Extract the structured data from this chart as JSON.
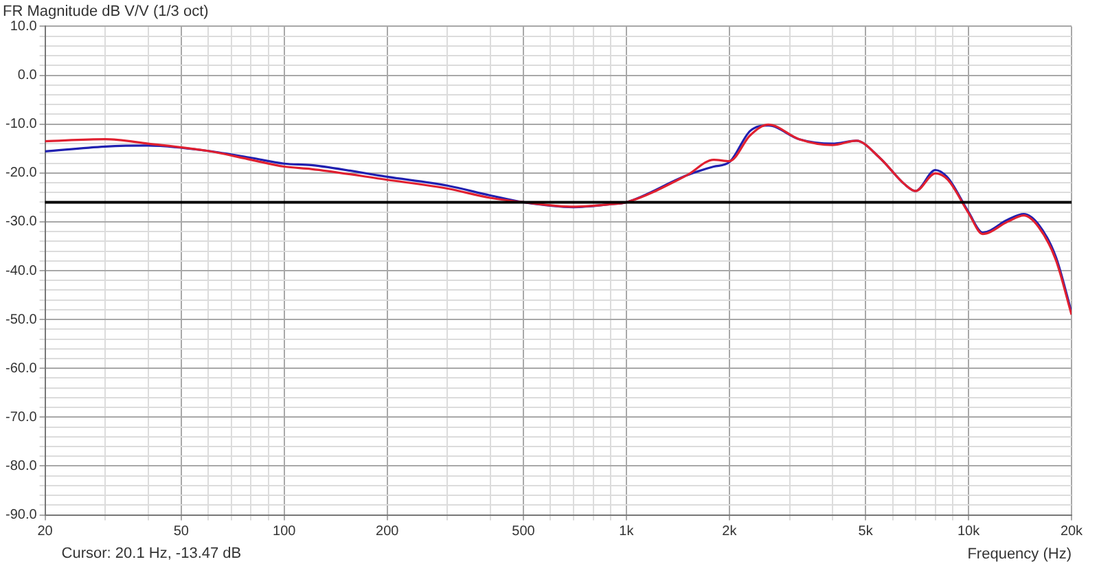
{
  "chart_data": {
    "type": "line",
    "title": "FR Magnitude dB V/V (1/3 oct)",
    "xlabel": "Frequency (Hz)",
    "log": "x",
    "grid": true,
    "legend": false,
    "marker": "none",
    "line_style": "solid",
    "xlim": [
      20,
      20000
    ],
    "xticks": [
      20,
      {
        "value": 30,
        "label": null
      },
      {
        "value": 40,
        "label": null
      },
      50,
      {
        "value": 60,
        "label": null
      },
      {
        "value": 70,
        "label": null
      },
      {
        "value": 80,
        "label": null
      },
      {
        "value": 90,
        "label": null
      },
      100,
      200,
      {
        "value": 300,
        "label": null
      },
      {
        "value": 400,
        "label": null
      },
      500,
      {
        "value": 600,
        "label": null
      },
      {
        "value": 700,
        "label": null
      },
      {
        "value": 800,
        "label": null
      },
      {
        "value": 900,
        "label": null
      },
      {
        "value": 1000,
        "label": "1k"
      },
      {
        "value": 2000,
        "label": "2k"
      },
      {
        "value": 3000,
        "label": null
      },
      {
        "value": 4000,
        "label": null
      },
      {
        "value": 5000,
        "label": "5k"
      },
      {
        "value": 6000,
        "label": null
      },
      {
        "value": 7000,
        "label": null
      },
      {
        "value": 8000,
        "label": null
      },
      {
        "value": 9000,
        "label": null
      },
      {
        "value": 10000,
        "label": "10k"
      },
      {
        "value": 20000,
        "label": "20k"
      }
    ],
    "ylim": [
      -90,
      10
    ],
    "yticks": [
      {
        "value": 10,
        "label": "10.0"
      },
      {
        "value": 8,
        "label": null
      },
      {
        "value": 6,
        "label": null
      },
      {
        "value": 4,
        "label": null
      },
      {
        "value": 2,
        "label": null
      },
      {
        "value": 0,
        "label": "0.0"
      },
      {
        "value": -2,
        "label": null
      },
      {
        "value": -4,
        "label": null
      },
      {
        "value": -6,
        "label": null
      },
      {
        "value": -8,
        "label": null
      },
      {
        "value": -10,
        "label": "-10.0"
      },
      {
        "value": -12,
        "label": null
      },
      {
        "value": -14,
        "label": null
      },
      {
        "value": -16,
        "label": null
      },
      {
        "value": -18,
        "label": null
      },
      {
        "value": -20,
        "label": "-20.0"
      },
      {
        "value": -22,
        "label": null
      },
      {
        "value": -24,
        "label": null
      },
      {
        "value": -26,
        "label": null
      },
      {
        "value": -28,
        "label": null
      },
      {
        "value": -30,
        "label": "-30.0"
      },
      {
        "value": -32,
        "label": null
      },
      {
        "value": -34,
        "label": null
      },
      {
        "value": -36,
        "label": null
      },
      {
        "value": -38,
        "label": null
      },
      {
        "value": -40,
        "label": "-40.0"
      },
      {
        "value": -42,
        "label": null
      },
      {
        "value": -44,
        "label": null
      },
      {
        "value": -46,
        "label": null
      },
      {
        "value": -48,
        "label": null
      },
      {
        "value": -50,
        "label": "-50.0"
      },
      {
        "value": -52,
        "label": null
      },
      {
        "value": -54,
        "label": null
      },
      {
        "value": -56,
        "label": null
      },
      {
        "value": -58,
        "label": null
      },
      {
        "value": -60,
        "label": "-60.0"
      },
      {
        "value": -62,
        "label": null
      },
      {
        "value": -64,
        "label": null
      },
      {
        "value": -66,
        "label": null
      },
      {
        "value": -68,
        "label": null
      },
      {
        "value": -70,
        "label": "-70.0"
      },
      {
        "value": -72,
        "label": null
      },
      {
        "value": -74,
        "label": null
      },
      {
        "value": -76,
        "label": null
      },
      {
        "value": -78,
        "label": null
      },
      {
        "value": -80,
        "label": "-80.0"
      },
      {
        "value": -82,
        "label": null
      },
      {
        "value": -84,
        "label": null
      },
      {
        "value": -86,
        "label": null
      },
      {
        "value": -88,
        "label": null
      },
      {
        "value": -90,
        "label": "-90.0"
      }
    ],
    "x": [
      20,
      30,
      40,
      60,
      80,
      100,
      120,
      200,
      300,
      400,
      500,
      700,
      900,
      1000,
      1500,
      1800,
      2000,
      2300,
      2600,
      3200,
      4000,
      4700,
      5500,
      6500,
      7000,
      8000,
      8700,
      10000,
      11000,
      13000,
      14500,
      16000,
      18000,
      20000
    ],
    "series": [
      {
        "color": "#e02030",
        "values": [
          -13.5,
          -13.1,
          -14.0,
          -15.5,
          -17.3,
          -18.7,
          -19.2,
          -21.4,
          -23.2,
          -25.1,
          -26.0,
          -26.9,
          -26.4,
          -26.0,
          -20.5,
          -17.3,
          -17.6,
          -12.3,
          -10.1,
          -13.1,
          -14.3,
          -13.4,
          -16.9,
          -22.3,
          -23.7,
          -20.1,
          -21.4,
          -28.2,
          -32.5,
          -30.0,
          -28.7,
          -31.0,
          -37.8,
          -49.0
        ]
      },
      {
        "color": "#2020b0",
        "values": [
          -15.6,
          -14.6,
          -14.4,
          -15.5,
          -16.9,
          -18.1,
          -18.4,
          -20.8,
          -22.6,
          -24.6,
          -26.0,
          -27.0,
          -26.4,
          -26.0,
          -20.5,
          -18.7,
          -17.8,
          -11.4,
          -10.3,
          -13.1,
          -14.0,
          -13.4,
          -16.9,
          -22.3,
          -23.7,
          -19.4,
          -21.0,
          -28.0,
          -32.2,
          -29.6,
          -28.4,
          -30.5,
          -37.2,
          -48.5
        ]
      }
    ],
    "ref_lines": [
      {
        "axis": "y",
        "value": -26,
        "color": "#000000"
      }
    ],
    "annotations": [
      "Cursor: 20.1 Hz, -13.47 dB"
    ]
  }
}
